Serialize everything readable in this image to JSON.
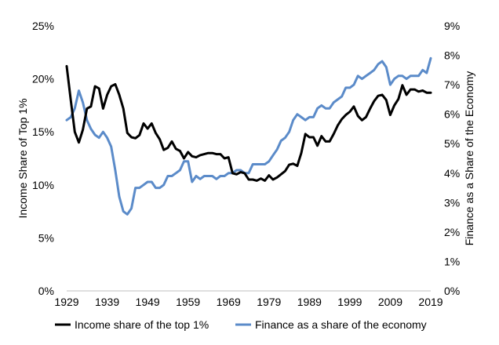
{
  "chart_data": {
    "type": "line",
    "title": "",
    "xlabel": "",
    "ylabel_left": "Income Share of Top 1%",
    "ylabel_right": "Finance as a Share of the Economy",
    "xlim": [
      1929,
      2019
    ],
    "ylim_left": [
      0,
      25
    ],
    "ylim_right": [
      0,
      9
    ],
    "x_ticks": [
      "1929",
      "1939",
      "1949",
      "1959",
      "1969",
      "1979",
      "1989",
      "1999",
      "2009",
      "2019"
    ],
    "y_ticks_left": [
      "0%",
      "5%",
      "10%",
      "15%",
      "20%",
      "25%"
    ],
    "y_ticks_right": [
      "0%",
      "1%",
      "2%",
      "3%",
      "4%",
      "5%",
      "6%",
      "7%",
      "8%",
      "9%"
    ],
    "grid": false,
    "legend_position": "bottom",
    "series": [
      {
        "name": "Income share of the top 1%",
        "axis": "left",
        "color": "#000000",
        "x": [
          1929,
          1930,
          1931,
          1932,
          1933,
          1934,
          1935,
          1936,
          1937,
          1938,
          1939,
          1940,
          1941,
          1942,
          1943,
          1944,
          1945,
          1946,
          1947,
          1948,
          1949,
          1950,
          1951,
          1952,
          1953,
          1954,
          1955,
          1956,
          1957,
          1958,
          1959,
          1960,
          1961,
          1962,
          1963,
          1964,
          1965,
          1966,
          1967,
          1968,
          1969,
          1970,
          1971,
          1972,
          1973,
          1974,
          1975,
          1976,
          1977,
          1978,
          1979,
          1980,
          1981,
          1982,
          1983,
          1984,
          1985,
          1986,
          1987,
          1988,
          1989,
          1990,
          1991,
          1992,
          1993,
          1994,
          1995,
          1996,
          1997,
          1998,
          1999,
          2000,
          2001,
          2002,
          2003,
          2004,
          2005,
          2006,
          2007,
          2008,
          2009,
          2010,
          2011,
          2012,
          2013,
          2014,
          2015,
          2016,
          2017,
          2018,
          2019
        ],
        "values": [
          21.2,
          18.0,
          15.0,
          14.0,
          15.2,
          17.2,
          17.4,
          19.3,
          19.1,
          17.2,
          18.5,
          19.3,
          19.5,
          18.5,
          17.2,
          14.9,
          14.5,
          14.4,
          14.7,
          15.8,
          15.3,
          15.8,
          14.9,
          14.3,
          13.3,
          13.5,
          14.1,
          13.4,
          13.2,
          12.5,
          13.1,
          12.7,
          12.6,
          12.8,
          12.9,
          13.0,
          13.0,
          12.9,
          12.9,
          12.5,
          12.6,
          11.1,
          11.0,
          11.2,
          11.1,
          10.5,
          10.5,
          10.4,
          10.6,
          10.4,
          10.9,
          10.5,
          10.7,
          11.0,
          11.3,
          11.9,
          12.0,
          11.8,
          13.0,
          14.8,
          14.5,
          14.5,
          13.7,
          14.6,
          14.1,
          14.1,
          14.8,
          15.6,
          16.2,
          16.6,
          16.9,
          17.4,
          16.5,
          16.1,
          16.4,
          17.2,
          17.9,
          18.4,
          18.5,
          18.0,
          16.6,
          17.5,
          18.1,
          19.4,
          18.5,
          19.0,
          19.0,
          18.8,
          18.9,
          18.7,
          18.7
        ]
      },
      {
        "name": "Finance as a share of the economy",
        "axis": "right",
        "color": "#5b8bc9",
        "x": [
          1929,
          1930,
          1931,
          1932,
          1933,
          1934,
          1935,
          1936,
          1937,
          1938,
          1939,
          1940,
          1941,
          1942,
          1943,
          1944,
          1945,
          1946,
          1947,
          1948,
          1949,
          1950,
          1951,
          1952,
          1953,
          1954,
          1955,
          1956,
          1957,
          1958,
          1959,
          1960,
          1961,
          1962,
          1963,
          1964,
          1965,
          1966,
          1967,
          1968,
          1969,
          1970,
          1971,
          1972,
          1973,
          1974,
          1975,
          1976,
          1977,
          1978,
          1979,
          1980,
          1981,
          1982,
          1983,
          1984,
          1985,
          1986,
          1987,
          1988,
          1989,
          1990,
          1991,
          1992,
          1993,
          1994,
          1995,
          1996,
          1997,
          1998,
          1999,
          2000,
          2001,
          2002,
          2003,
          2004,
          2005,
          2006,
          2007,
          2008,
          2009,
          2010,
          2011,
          2012,
          2013,
          2014,
          2015,
          2016,
          2017,
          2018,
          2019
        ],
        "values": [
          5.8,
          5.9,
          6.2,
          6.8,
          6.4,
          5.8,
          5.5,
          5.3,
          5.2,
          5.4,
          5.2,
          4.9,
          4.1,
          3.2,
          2.7,
          2.6,
          2.8,
          3.5,
          3.5,
          3.6,
          3.7,
          3.7,
          3.5,
          3.5,
          3.6,
          3.9,
          3.9,
          4.0,
          4.1,
          4.4,
          4.4,
          3.7,
          3.9,
          3.8,
          3.9,
          3.9,
          3.9,
          3.8,
          3.9,
          3.9,
          4.0,
          4.0,
          4.1,
          4.1,
          4.0,
          4.0,
          4.3,
          4.3,
          4.3,
          4.3,
          4.4,
          4.6,
          4.8,
          5.1,
          5.2,
          5.4,
          5.8,
          6.0,
          5.9,
          5.8,
          5.9,
          5.9,
          6.2,
          6.3,
          6.2,
          6.2,
          6.4,
          6.5,
          6.6,
          6.9,
          6.9,
          7.0,
          7.3,
          7.2,
          7.3,
          7.4,
          7.5,
          7.7,
          7.8,
          7.6,
          7.0,
          7.2,
          7.3,
          7.3,
          7.2,
          7.3,
          7.3,
          7.3,
          7.5,
          7.4,
          7.9
        ]
      }
    ]
  }
}
